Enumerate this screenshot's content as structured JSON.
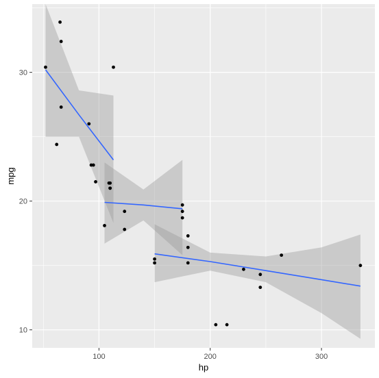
{
  "chart_data": {
    "type": "scatter",
    "title": "",
    "xlabel": "hp",
    "ylabel": "mpg",
    "xlim": [
      40,
      348
    ],
    "ylim": [
      8.6,
      35.3
    ],
    "x_ticks": [
      100,
      200,
      300
    ],
    "y_ticks": [
      10,
      20,
      30
    ],
    "grid": true,
    "legend": "none",
    "colors": {
      "panel": "#ebebeb",
      "grid_major": "#ffffff",
      "point": "#000000",
      "line": "#3366ff",
      "ribbon": "#999999",
      "tick": "#333333",
      "tick_label": "#4d4d4d"
    },
    "points": [
      {
        "x": 52,
        "y": 30.4
      },
      {
        "x": 62,
        "y": 24.4
      },
      {
        "x": 65,
        "y": 33.9
      },
      {
        "x": 66,
        "y": 32.4
      },
      {
        "x": 66,
        "y": 27.3
      },
      {
        "x": 91,
        "y": 26.0
      },
      {
        "x": 93,
        "y": 22.8
      },
      {
        "x": 95,
        "y": 22.8
      },
      {
        "x": 97,
        "y": 21.5
      },
      {
        "x": 105,
        "y": 18.1
      },
      {
        "x": 109,
        "y": 21.4
      },
      {
        "x": 110,
        "y": 21.0
      },
      {
        "x": 110,
        "y": 21.0
      },
      {
        "x": 110,
        "y": 21.4
      },
      {
        "x": 113,
        "y": 30.4
      },
      {
        "x": 123,
        "y": 19.2
      },
      {
        "x": 123,
        "y": 17.8
      },
      {
        "x": 150,
        "y": 15.5
      },
      {
        "x": 150,
        "y": 15.2
      },
      {
        "x": 175,
        "y": 18.7
      },
      {
        "x": 175,
        "y": 19.2
      },
      {
        "x": 175,
        "y": 19.7
      },
      {
        "x": 180,
        "y": 16.4
      },
      {
        "x": 180,
        "y": 17.3
      },
      {
        "x": 180,
        "y": 15.2
      },
      {
        "x": 205,
        "y": 10.4
      },
      {
        "x": 215,
        "y": 10.4
      },
      {
        "x": 230,
        "y": 14.7
      },
      {
        "x": 245,
        "y": 14.3
      },
      {
        "x": 245,
        "y": 13.3
      },
      {
        "x": 264,
        "y": 15.8
      },
      {
        "x": 335,
        "y": 15.0
      }
    ],
    "fits": [
      {
        "x": [
          52,
          82,
          113
        ],
        "y": [
          30.2,
          26.7,
          23.2
        ],
        "lower": [
          25.0,
          25.0,
          18.3
        ],
        "upper": [
          35.3,
          28.6,
          28.2
        ]
      },
      {
        "x": [
          105,
          140,
          175
        ],
        "y": [
          19.9,
          19.7,
          19.4
        ],
        "lower": [
          16.7,
          18.5,
          15.8
        ],
        "upper": [
          23.0,
          20.9,
          23.2
        ]
      },
      {
        "x": [
          150,
          200,
          250,
          300,
          335
        ],
        "y": [
          15.9,
          15.3,
          14.6,
          13.9,
          13.4
        ],
        "lower": [
          13.7,
          14.6,
          13.7,
          11.3,
          9.3
        ],
        "upper": [
          18.2,
          16.0,
          15.7,
          16.4,
          17.4
        ]
      }
    ]
  }
}
